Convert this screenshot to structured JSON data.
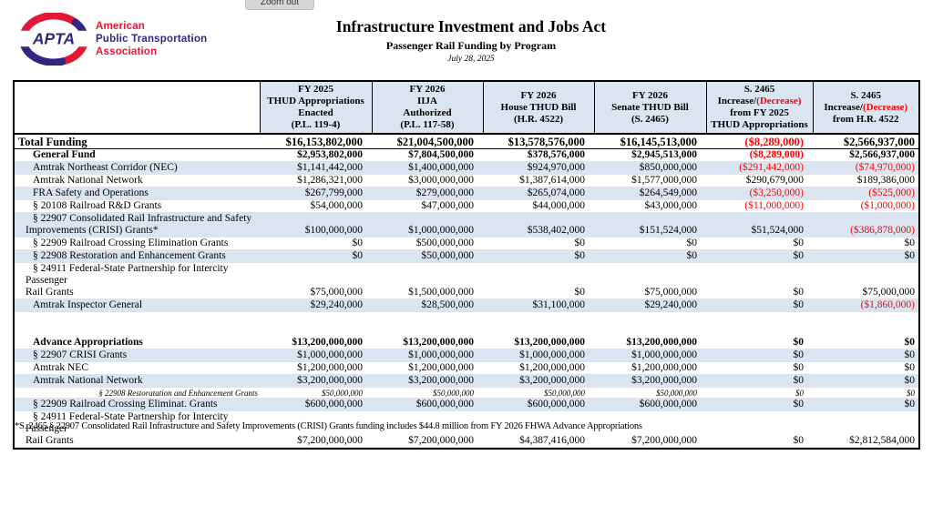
{
  "colors": {
    "band_blue": "#dbe5f1",
    "negative_red": "#ff0000",
    "logo_blue": "#312783",
    "logo_red": "#e31837",
    "header_border": "#000000"
  },
  "viewer": {
    "zoom_out_label": "Zoom out"
  },
  "logo": {
    "acronym": "APTA",
    "org_lines": [
      "American",
      "Public Transportation",
      "Association"
    ]
  },
  "header": {
    "title": "Infrastructure Investment and Jobs Act",
    "subtitle": "Passenger Rail Funding by Program",
    "date": "July 28, 2025"
  },
  "table": {
    "columns": [
      {
        "lines": []
      },
      {
        "lines": [
          "FY 2025",
          "THUD Appropriations",
          "Enacted",
          "(P.L. 119-4)"
        ]
      },
      {
        "lines": [
          "FY 2026",
          "IIJA",
          "Authorized",
          "(P.L. 117-58)"
        ]
      },
      {
        "lines": [
          "FY 2026",
          "House THUD Bill",
          "(H.R. 4522)"
        ]
      },
      {
        "lines": [
          "FY 2026",
          "Senate THUD Bill",
          "(S. 2465)"
        ]
      },
      {
        "lines": [
          "S. 2465",
          "Increase/(Decrease)",
          "from FY 2025",
          "THUD Appropriations"
        ]
      },
      {
        "lines": [
          "S. 2465",
          "Increase/(Decrease)",
          "from H.R. 4522"
        ]
      }
    ],
    "rows": [
      {
        "label": "Total Funding",
        "style": "total",
        "values": [
          "$16,153,802,000",
          "$21,004,500,000",
          "$13,578,576,000",
          "$16,145,513,000",
          "($8,289,000)",
          "$2,566,937,000"
        ]
      },
      {
        "label": "General Fund",
        "style": "bold",
        "values": [
          "$2,953,802,000",
          "$7,804,500,000",
          "$378,576,000",
          "$2,945,513,000",
          "($8,289,000)",
          "$2,566,937,000"
        ]
      },
      {
        "label": "Amtrak Northeast Corridor (NEC)",
        "shaded": true,
        "values": [
          "$1,141,442,000",
          "$1,400,000,000",
          "$924,970,000",
          "$850,000,000",
          "($291,442,000)",
          "($74,970,000)"
        ]
      },
      {
        "label": "Amtrak National Network",
        "values": [
          "$1,286,321,000",
          "$3,000,000,000",
          "$1,387,614,000",
          "$1,577,000,000",
          "$290,679,000",
          "$189,386,000"
        ]
      },
      {
        "label": "FRA Safety and Operations",
        "shaded": true,
        "values": [
          "$267,799,000",
          "$279,000,000",
          "$265,074,000",
          "$264,549,000",
          "($3,250,000)",
          "($525,000)"
        ]
      },
      {
        "label": "§ 20108 Railroad R&D Grants",
        "values": [
          "$54,000,000",
          "$47,000,000",
          "$44,000,000",
          "$43,000,000",
          "($11,000,000)",
          "($1,000,000)"
        ]
      },
      {
        "label": "§ 22907 Consolidated Rail Infrastructure and Safety\nImprovements (CRISI) Grants*",
        "shaded": true,
        "twoline": true,
        "values": [
          "$100,000,000",
          "$1,000,000,000",
          "$538,402,000",
          "$151,524,000",
          "$51,524,000",
          "($386,878,000)"
        ]
      },
      {
        "label": "§ 22909 Railroad Crossing Elimination Grants",
        "values": [
          "$0",
          "$500,000,000",
          "$0",
          "$0",
          "$0",
          "$0"
        ]
      },
      {
        "label": "§ 22908 Restoration and Enhancement Grants",
        "shaded": true,
        "values": [
          "$0",
          "$50,000,000",
          "$0",
          "$0",
          "$0",
          "$0"
        ]
      },
      {
        "label": "§ 24911 Federal-State Partnership for Intercity Passenger\nRail Grants",
        "twoline": true,
        "values": [
          "$75,000,000",
          "$1,500,000,000",
          "$0",
          "$75,000,000",
          "$0",
          "$75,000,000"
        ]
      },
      {
        "label": "Amtrak Inspector General",
        "shaded": true,
        "values": [
          "$29,240,000",
          "$28,500,000",
          "$31,100,000",
          "$29,240,000",
          "$0",
          "($1,860,000)"
        ]
      },
      {
        "spacer": true
      },
      {
        "label": "Advance Appropriations",
        "style": "bold",
        "values": [
          "$13,200,000,000",
          "$13,200,000,000",
          "$13,200,000,000",
          "$13,200,000,000",
          "$0",
          "$0"
        ]
      },
      {
        "label": "§ 22907 CRISI Grants",
        "shaded": true,
        "values": [
          "$1,000,000,000",
          "$1,000,000,000",
          "$1,000,000,000",
          "$1,000,000,000",
          "$0",
          "$0"
        ]
      },
      {
        "label": "Amtrak NEC",
        "values": [
          "$1,200,000,000",
          "$1,200,000,000",
          "$1,200,000,000",
          "$1,200,000,000",
          "$0",
          "$0"
        ]
      },
      {
        "label": "Amtrak National Network",
        "shaded": true,
        "values": [
          "$3,200,000,000",
          "$3,200,000,000",
          "$3,200,000,000",
          "$3,200,000,000",
          "$0",
          "$0"
        ]
      },
      {
        "label": "§ 22908 Restoratation and Enhancement Grants",
        "style": "italic",
        "values": [
          "$50,000,000",
          "$50,000,000",
          "$50,000,000",
          "$50,000,000",
          "$0",
          "$0"
        ]
      },
      {
        "label": "§ 22909 Railroad Crossing Eliminat. Grants",
        "shaded": true,
        "values": [
          "$600,000,000",
          "$600,000,000",
          "$600,000,000",
          "$600,000,000",
          "$0",
          "$0"
        ]
      },
      {
        "label": "§ 24911 Federal-State Partnership for Intercity Passenger\nRail Grants",
        "twoline": true,
        "values": [
          "$7,200,000,000",
          "$7,200,000,000",
          "$4,387,416,000",
          "$7,200,000,000",
          "$0",
          "$2,812,584,000"
        ]
      }
    ]
  },
  "footnote": {
    "text": "*S. 2465 § 22907 Consolidated Rail Infrastructure and Safety Improvements (CRISI) Grants funding includes $44.8 million from FY 2026 FHWA Advance Appropriations"
  }
}
